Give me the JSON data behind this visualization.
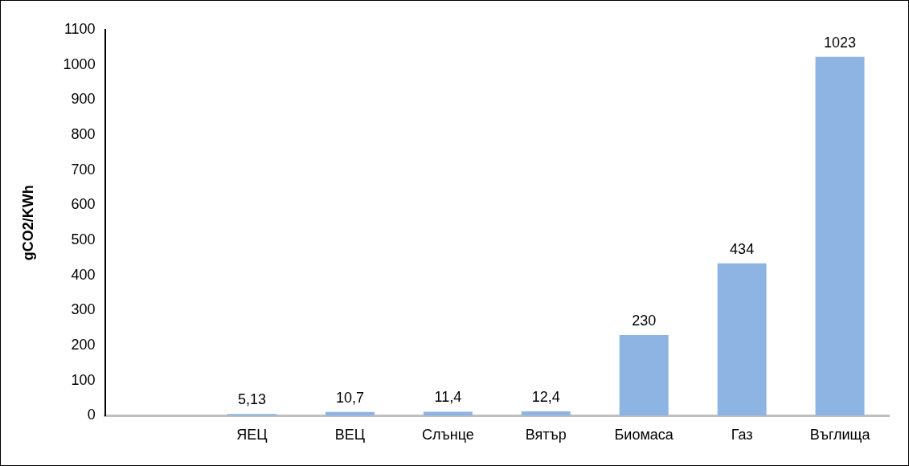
{
  "chart_data": {
    "type": "bar",
    "ylabel": "gCO2/KWh",
    "categories": [
      null,
      "ЯЕЦ",
      "ВЕЦ",
      "Слънце",
      "Вятър",
      "Биомаса",
      "Газ",
      "Въглища"
    ],
    "values": [
      null,
      5.13,
      10.7,
      11.4,
      12.4,
      230,
      434,
      1023
    ],
    "value_labels": [
      null,
      "5,13",
      "10,7",
      "11,4",
      "12,4",
      "230",
      "434",
      "1023"
    ],
    "color": "#8db4e2",
    "ylim": [
      0,
      1100
    ],
    "yticks": [
      0,
      100,
      200,
      300,
      400,
      500,
      600,
      700,
      800,
      900,
      1000,
      1100
    ],
    "grid": false,
    "legend": false
  }
}
